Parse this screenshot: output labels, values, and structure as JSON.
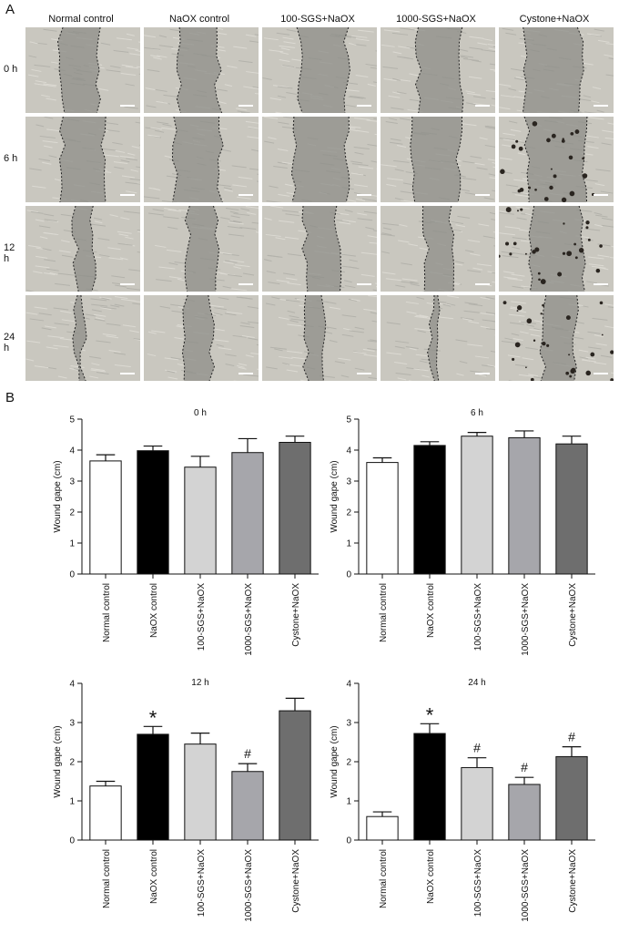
{
  "panels": {
    "a": "A",
    "b": "B"
  },
  "micrographs": {
    "columns": [
      "Normal control",
      "NaOX control",
      "100-SGS+NaOX",
      "1000-SGS+NaOX",
      "Cystone+NaOX"
    ],
    "rows": [
      "0 h",
      "6 h",
      "12 h",
      "24 h"
    ]
  },
  "chart_data": [
    {
      "type": "bar",
      "title": "0 h",
      "ylabel": "Wound gape (cm)",
      "ylim": [
        0,
        5
      ],
      "yticks": [
        0,
        1,
        2,
        3,
        4,
        5
      ],
      "categories": [
        "Normal control",
        "NaOX control",
        "100-SGS+NaOX",
        "1000-SGS+NaOX",
        "Cystone+NaOX"
      ],
      "values": [
        3.65,
        3.98,
        3.45,
        3.92,
        4.25
      ],
      "errors": [
        0.2,
        0.15,
        0.35,
        0.45,
        0.2
      ],
      "annotations": [
        "",
        "",
        "",
        "",
        ""
      ],
      "colors": [
        "#ffffff",
        "#000000",
        "#d3d3d3",
        "#a6a6ab",
        "#6e6e6e"
      ]
    },
    {
      "type": "bar",
      "title": "6 h",
      "ylabel": "Wound gape (cm)",
      "ylim": [
        0,
        5
      ],
      "yticks": [
        0,
        1,
        2,
        3,
        4,
        5
      ],
      "categories": [
        "Normal control",
        "NaOX control",
        "100-SGS+NaOX",
        "1000-SGS+NaOX",
        "Cystone+NaOX"
      ],
      "values": [
        3.6,
        4.15,
        4.45,
        4.4,
        4.2
      ],
      "errors": [
        0.15,
        0.12,
        0.12,
        0.22,
        0.25
      ],
      "annotations": [
        "",
        "",
        "",
        "",
        ""
      ],
      "colors": [
        "#ffffff",
        "#000000",
        "#d3d3d3",
        "#a6a6ab",
        "#6e6e6e"
      ]
    },
    {
      "type": "bar",
      "title": "12 h",
      "ylabel": "Wound gape (cm)",
      "ylim": [
        0,
        4
      ],
      "yticks": [
        0,
        1,
        2,
        3,
        4
      ],
      "categories": [
        "Normal control",
        "NaOX control",
        "100-SGS+NaOX",
        "1000-SGS+NaOX",
        "Cystone+NaOX"
      ],
      "values": [
        1.38,
        2.7,
        2.45,
        1.75,
        3.3
      ],
      "errors": [
        0.12,
        0.2,
        0.28,
        0.2,
        0.32
      ],
      "annotations": [
        "",
        "*",
        "",
        "#",
        ""
      ],
      "colors": [
        "#ffffff",
        "#000000",
        "#d3d3d3",
        "#a6a6ab",
        "#6e6e6e"
      ]
    },
    {
      "type": "bar",
      "title": "24 h",
      "ylabel": "Wound gape (cm)",
      "ylim": [
        0,
        4
      ],
      "yticks": [
        0,
        1,
        2,
        3,
        4
      ],
      "categories": [
        "Normal control",
        "NaOX control",
        "100-SGS+NaOX",
        "1000-SGS+NaOX",
        "Cystone+NaOX"
      ],
      "values": [
        0.6,
        2.72,
        1.85,
        1.42,
        2.13
      ],
      "errors": [
        0.12,
        0.25,
        0.25,
        0.18,
        0.25
      ],
      "annotations": [
        "",
        "*",
        "#",
        "#",
        "#"
      ],
      "colors": [
        "#ffffff",
        "#000000",
        "#d3d3d3",
        "#a6a6ab",
        "#6e6e6e"
      ]
    }
  ]
}
